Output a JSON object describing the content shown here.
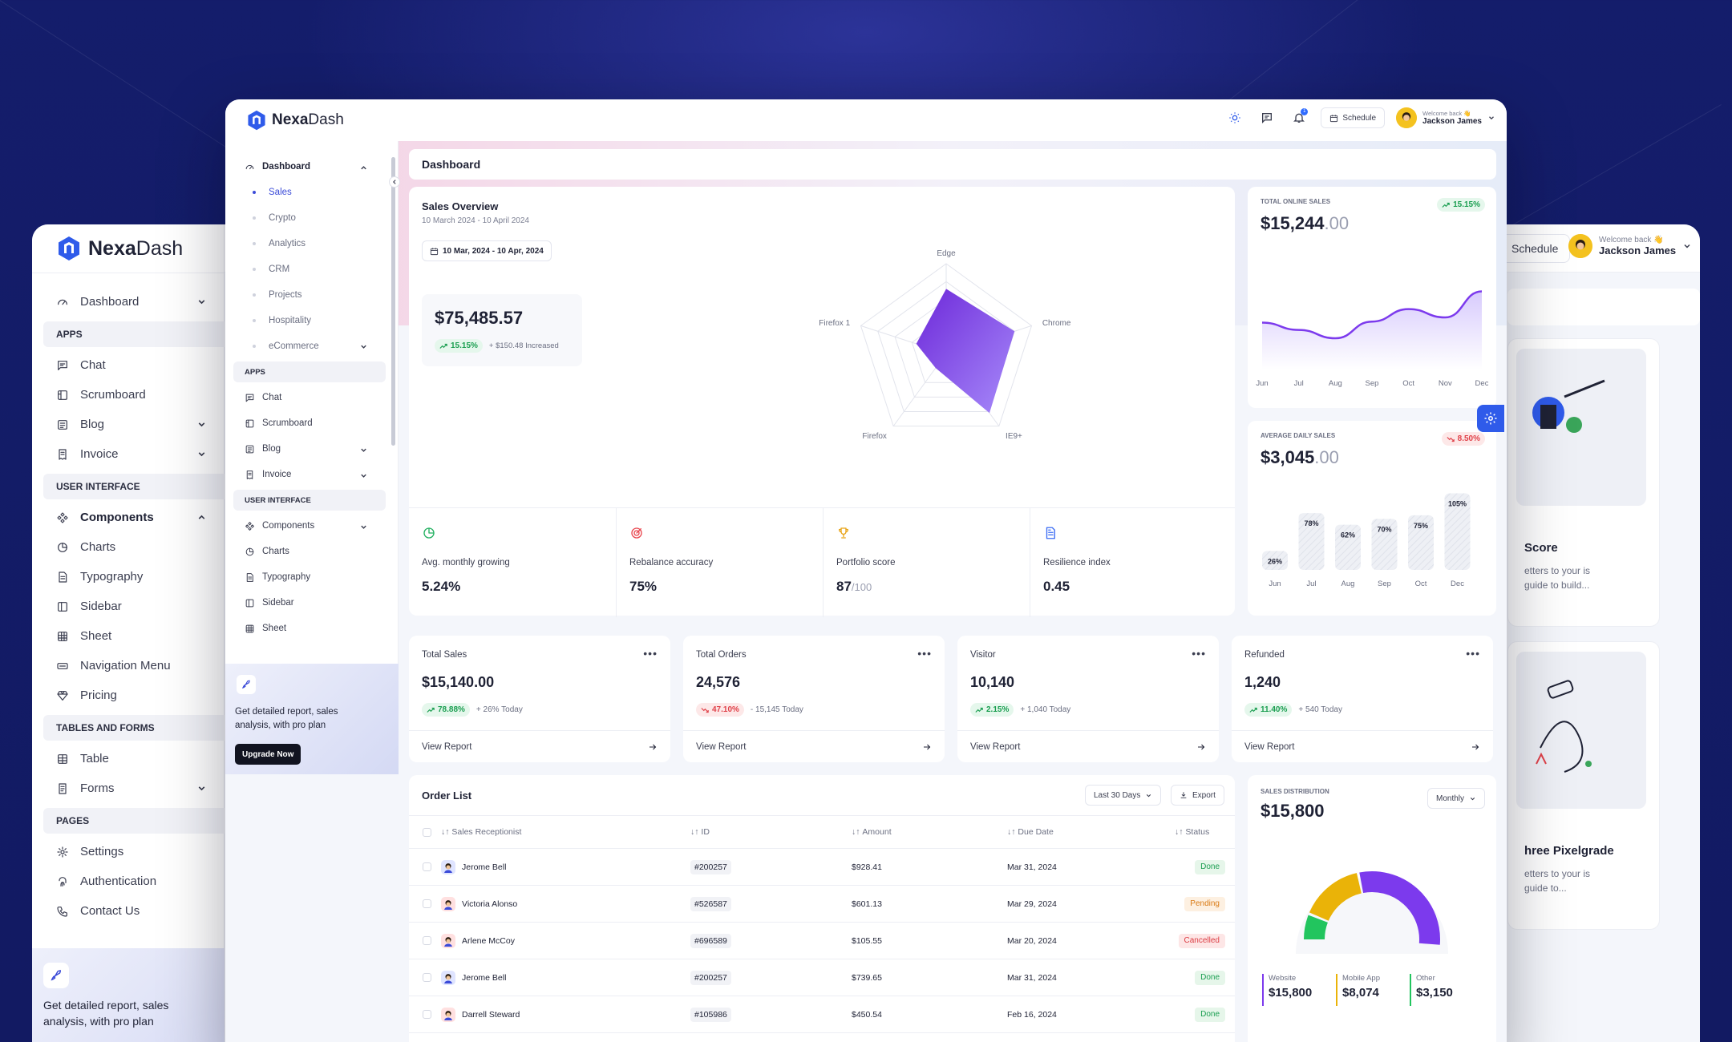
{
  "back": {
    "brand": {
      "name_bold": "Nexa",
      "name_rest": "Dash"
    },
    "nav": [
      {
        "type": "item",
        "label": "Dashboard",
        "icon": "gauge-icon",
        "chevron": "down"
      },
      {
        "type": "head",
        "label": "APPS"
      },
      {
        "type": "item",
        "label": "Chat",
        "icon": "chat-icon"
      },
      {
        "type": "item",
        "label": "Scrumboard",
        "icon": "board-icon"
      },
      {
        "type": "item",
        "label": "Blog",
        "icon": "blog-icon",
        "chevron": "down"
      },
      {
        "type": "item",
        "label": "Invoice",
        "icon": "invoice-icon",
        "chevron": "down"
      },
      {
        "type": "head",
        "label": "USER INTERFACE"
      },
      {
        "type": "item",
        "label": "Components",
        "icon": "components-icon",
        "chevron": "up",
        "active": true
      },
      {
        "type": "item",
        "label": "Charts",
        "icon": "pie-icon"
      },
      {
        "type": "item",
        "label": "Typography",
        "icon": "doc-icon"
      },
      {
        "type": "item",
        "label": "Sidebar",
        "icon": "sidebar-icon"
      },
      {
        "type": "item",
        "label": "Sheet",
        "icon": "sheet-icon"
      },
      {
        "type": "item",
        "label": "Navigation Menu",
        "icon": "menu-icon"
      },
      {
        "type": "item",
        "label": "Pricing",
        "icon": "diamond-icon"
      },
      {
        "type": "head",
        "label": "TABLES AND FORMS"
      },
      {
        "type": "item",
        "label": "Table",
        "icon": "table-icon"
      },
      {
        "type": "item",
        "label": "Forms",
        "icon": "forms-icon",
        "chevron": "down"
      },
      {
        "type": "head",
        "label": "PAGES"
      },
      {
        "type": "item",
        "label": "Settings",
        "icon": "gear-icon"
      },
      {
        "type": "item",
        "label": "Authentication",
        "icon": "fingerprint-icon"
      },
      {
        "type": "item",
        "label": "Contact Us",
        "icon": "phone-icon"
      }
    ],
    "promo_text": "Get detailed report, sales analysis, with pro plan",
    "schedule_label": "Schedule",
    "welcome": "Welcome back 👋",
    "user_name": "Jackson James",
    "card1": {
      "title": "Score",
      "desc": "etters to your is guide to build..."
    },
    "card2": {
      "title": "hree Pixelgrade",
      "desc": "etters to your is guide to..."
    }
  },
  "front": {
    "brand": {
      "name_bold": "Nexa",
      "name_rest": "Dash"
    },
    "header": {
      "schedule_label": "Schedule",
      "notif_count": "1",
      "welcome": "Welcome back 👋",
      "user_name": "Jackson James"
    },
    "sidebar": {
      "dashboard": {
        "label": "Dashboard",
        "icon": "gauge-icon"
      },
      "sub_items": [
        {
          "label": "Sales",
          "active": true
        },
        {
          "label": "Crypto"
        },
        {
          "label": "Analytics"
        },
        {
          "label": "CRM"
        },
        {
          "label": "Projects"
        },
        {
          "label": "Hospitality"
        },
        {
          "label": "eCommerce",
          "chevron": true
        }
      ],
      "apps_head": "APPS",
      "apps": [
        {
          "label": "Chat",
          "icon": "chat-icon"
        },
        {
          "label": "Scrumboard",
          "icon": "board-icon"
        },
        {
          "label": "Blog",
          "icon": "blog-icon",
          "chevron": true
        },
        {
          "label": "Invoice",
          "icon": "invoice-icon",
          "chevron": true
        }
      ],
      "ui_head": "USER INTERFACE",
      "ui": [
        {
          "label": "Components",
          "icon": "components-icon",
          "chevron": true
        },
        {
          "label": "Charts",
          "icon": "pie-icon"
        },
        {
          "label": "Typography",
          "icon": "doc-icon"
        },
        {
          "label": "Sidebar",
          "icon": "sidebar-icon"
        },
        {
          "label": "Sheet",
          "icon": "sheet-icon"
        }
      ],
      "promo_text": "Get detailed report, sales analysis, with pro plan",
      "upgrade_label": "Upgrade Now"
    },
    "breadcrumb": "Dashboard",
    "sales_overview": {
      "title": "Sales Overview",
      "period": "10 March 2024 - 10 April 2024",
      "date_range": "10 Mar, 2024 - 10 Apr, 2024",
      "amount": "$75,485.57",
      "growth": "15.15%",
      "increase": "+ $150.48 Increased"
    },
    "stats": [
      {
        "label": "Avg. monthly growing",
        "value": "5.24%",
        "icon": "pie-icon",
        "color": "#22b060"
      },
      {
        "label": "Rebalance accuracy",
        "value": "75%",
        "icon": "target-icon",
        "color": "#e9464e"
      },
      {
        "label": "Portfolio score",
        "value": "87",
        "value_suffix": "/100",
        "icon": "trophy-icon",
        "color": "#e8a316"
      },
      {
        "label": "Resilience index",
        "value": "0.45",
        "icon": "file-icon",
        "color": "#3b6cf4"
      }
    ],
    "online_sales": {
      "label": "TOTAL ONLINE SALES",
      "value_main": "$15,244",
      "value_dec": ".00",
      "growth": "15.15%"
    },
    "daily_sales": {
      "label": "AVERAGE DAILY SALES",
      "value_main": "$3,045",
      "value_dec": ".00",
      "change": "8.50%"
    },
    "metrics": [
      {
        "title": "Total Sales",
        "value": "$15,140.00",
        "pct": "78.88%",
        "dir": "up",
        "note": "+ 26% Today",
        "link": "View Report"
      },
      {
        "title": "Total Orders",
        "value": "24,576",
        "pct": "47.10%",
        "dir": "down",
        "note": "- 15,145 Today",
        "link": "View Report"
      },
      {
        "title": "Visitor",
        "value": "10,140",
        "pct": "2.15%",
        "dir": "up",
        "note": "+ 1,040 Today",
        "link": "View Report"
      },
      {
        "title": "Refunded",
        "value": "1,240",
        "pct": "11.40%",
        "dir": "up",
        "note": "+ 540 Today",
        "link": "View Report"
      }
    ],
    "order_list": {
      "title": "Order List",
      "range_label": "Last 30 Days",
      "export_label": "Export",
      "columns": [
        "Sales Receptionist",
        "ID",
        "Amount",
        "Due Date",
        "Status"
      ],
      "rows": [
        {
          "name": "Jerome Bell",
          "id": "#200257",
          "amount": "$928.41",
          "due": "Mar 31, 2024",
          "status": "Done",
          "av": "#dfe4ff"
        },
        {
          "name": "Victoria Alonso",
          "id": "#526587",
          "amount": "$601.13",
          "due": "Mar 29, 2024",
          "status": "Pending",
          "av": "#ffe0e0"
        },
        {
          "name": "Arlene McCoy",
          "id": "#696589",
          "amount": "$105.55",
          "due": "Mar 20, 2024",
          "status": "Cancelled",
          "av": "#ffe0e0"
        },
        {
          "name": "Jerome Bell",
          "id": "#200257",
          "amount": "$739.65",
          "due": "Mar 31, 2024",
          "status": "Done",
          "av": "#dfe4ff"
        },
        {
          "name": "Darrell Steward",
          "id": "#105986",
          "amount": "$450.54",
          "due": "Feb 16, 2024",
          "status": "Done",
          "av": "#ffe0e0"
        }
      ]
    },
    "distribution": {
      "label": "SALES DISTRIBUTION",
      "value": "$15,800",
      "period": "Monthly",
      "legend": [
        {
          "name": "Website",
          "value": "$15,800",
          "color": "#7c3aed"
        },
        {
          "name": "Mobile App",
          "value": "$8,074",
          "color": "#eab308"
        },
        {
          "name": "Other",
          "value": "$3,150",
          "color": "#22c55e"
        }
      ]
    }
  },
  "chart_data": [
    {
      "type": "radar",
      "axes": [
        "Edge",
        "Chrome",
        "IE9+",
        "Firefox",
        "Firefox 1"
      ],
      "values": [
        0.72,
        0.8,
        0.82,
        0.2,
        0.35
      ],
      "range": [
        0,
        1
      ],
      "color": "#7c3aed"
    },
    {
      "type": "area",
      "categories": [
        "Jun",
        "Jul",
        "Aug",
        "Sep",
        "Oct",
        "Nov",
        "Dec"
      ],
      "values": [
        45,
        38,
        30,
        46,
        58,
        50,
        75
      ],
      "range": [
        0,
        100
      ],
      "color": "#7c3aed"
    },
    {
      "type": "bar",
      "categories": [
        "Jun",
        "Jul",
        "Aug",
        "Sep",
        "Oct",
        "Dec"
      ],
      "values": [
        26,
        78,
        62,
        70,
        75,
        105
      ],
      "labels": [
        "26%",
        "78%",
        "62%",
        "70%",
        "75%",
        "105%"
      ],
      "range": [
        0,
        110
      ]
    },
    {
      "type": "pie",
      "categories": [
        "Other",
        "Mobile App",
        "Website"
      ],
      "values": [
        3150,
        8074,
        15800
      ],
      "colors": [
        "#22c55e",
        "#eab308",
        "#7c3aed"
      ]
    }
  ]
}
